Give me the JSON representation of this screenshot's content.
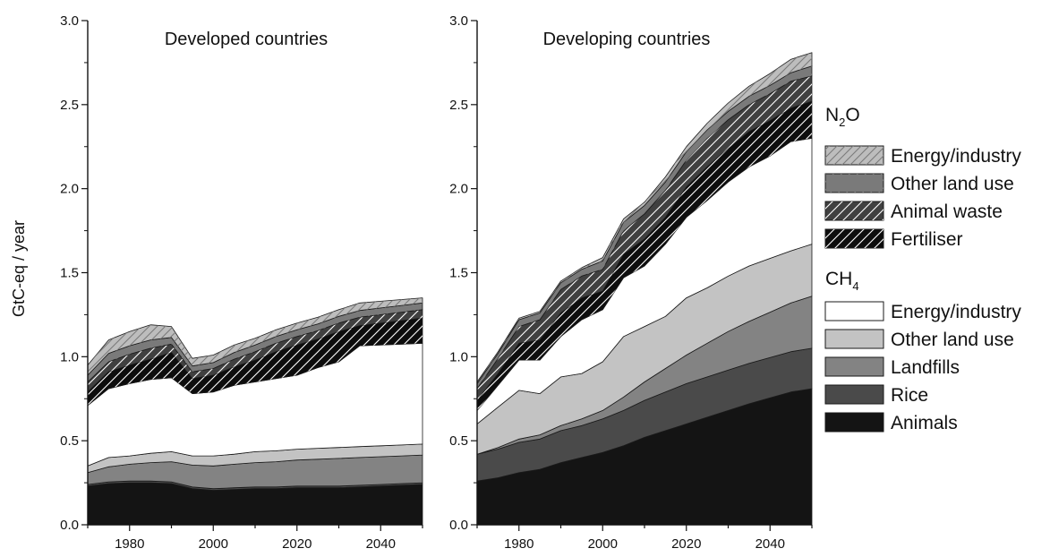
{
  "colors": {
    "animals": "#141414",
    "rice": "#4a4a4a",
    "landfills": "#838383",
    "ch4_other_land_use": "#c3c3c3",
    "ch4_energy_industry": "#ffffff",
    "fertiliser": "#0d0d0d",
    "animal_waste": "#404040",
    "n2o_other_land_use": "#7a7a7a",
    "n2o_energy_industry": "#bdbdbd"
  },
  "legend": {
    "n2o_heading": {
      "base": "N",
      "sub": "2",
      "tail": "O"
    },
    "ch4_heading": {
      "base": "CH",
      "sub": "4",
      "tail": ""
    },
    "n2o_items": [
      {
        "key": "n2o_energy_industry",
        "label": "Energy/industry",
        "color": "#bdbdbd",
        "hatched": true
      },
      {
        "key": "n2o_other_land_use",
        "label": "Other land use",
        "color": "#7a7a7a",
        "hatched": true
      },
      {
        "key": "animal_waste",
        "label": "Animal waste",
        "color": "#404040",
        "hatched": true
      },
      {
        "key": "fertiliser",
        "label": "Fertiliser",
        "color": "#0d0d0d",
        "hatched": true
      }
    ],
    "ch4_items": [
      {
        "key": "ch4_energy_industry",
        "label": "Energy/industry",
        "color": "#ffffff",
        "hatched": false
      },
      {
        "key": "ch4_other_land_use",
        "label": "Other land use",
        "color": "#c3c3c3",
        "hatched": false
      },
      {
        "key": "landfills",
        "label": "Landfills",
        "color": "#838383",
        "hatched": false
      },
      {
        "key": "rice",
        "label": "Rice",
        "color": "#4a4a4a",
        "hatched": false
      },
      {
        "key": "animals",
        "label": "Animals",
        "color": "#141414",
        "hatched": false
      }
    ]
  },
  "chart_data": [
    {
      "type": "area",
      "stacked": true,
      "title": "Developed countries",
      "xlabel": "",
      "ylabel": "GtC-eq / year",
      "xlim": [
        1970,
        2050
      ],
      "ylim": [
        0,
        3.0
      ],
      "xticks": [
        "1980",
        "2000",
        "2020",
        "2040"
      ],
      "yticks": [
        "0.0",
        "0.5",
        "1.0",
        "1.5",
        "2.0",
        "2.5",
        "3.0"
      ],
      "x": [
        1970,
        1975,
        1980,
        1985,
        1990,
        1995,
        2000,
        2005,
        2010,
        2015,
        2020,
        2025,
        2030,
        2035,
        2040,
        2045,
        2050
      ],
      "series": [
        {
          "key": "animals",
          "values": [
            0.23,
            0.245,
            0.25,
            0.25,
            0.245,
            0.215,
            0.205,
            0.21,
            0.215,
            0.215,
            0.22,
            0.22,
            0.22,
            0.225,
            0.23,
            0.235,
            0.24
          ]
        },
        {
          "key": "rice",
          "values": [
            0.01,
            0.01,
            0.01,
            0.01,
            0.01,
            0.01,
            0.01,
            0.01,
            0.01,
            0.01,
            0.01,
            0.01,
            0.01,
            0.01,
            0.01,
            0.01,
            0.01
          ]
        },
        {
          "key": "landfills",
          "values": [
            0.07,
            0.09,
            0.1,
            0.11,
            0.12,
            0.13,
            0.135,
            0.14,
            0.145,
            0.15,
            0.155,
            0.16,
            0.165,
            0.165,
            0.165,
            0.165,
            0.165
          ]
        },
        {
          "key": "ch4_other_land_use",
          "values": [
            0.04,
            0.055,
            0.05,
            0.055,
            0.06,
            0.055,
            0.06,
            0.06,
            0.065,
            0.065,
            0.065,
            0.065,
            0.065,
            0.065,
            0.065,
            0.065,
            0.065
          ]
        },
        {
          "key": "ch4_energy_industry",
          "values": [
            0.36,
            0.41,
            0.43,
            0.44,
            0.44,
            0.37,
            0.38,
            0.41,
            0.415,
            0.43,
            0.44,
            0.48,
            0.51,
            0.6,
            0.6,
            0.6,
            0.6
          ]
        },
        {
          "key": "fertiliser",
          "values": [
            0.08,
            0.1,
            0.11,
            0.12,
            0.15,
            0.09,
            0.1,
            0.11,
            0.13,
            0.16,
            0.18,
            0.17,
            0.18,
            0.12,
            0.13,
            0.14,
            0.15
          ]
        },
        {
          "key": "animal_waste",
          "values": [
            0.06,
            0.06,
            0.065,
            0.065,
            0.05,
            0.04,
            0.04,
            0.045,
            0.05,
            0.05,
            0.05,
            0.05,
            0.05,
            0.05,
            0.05,
            0.05,
            0.05
          ]
        },
        {
          "key": "n2o_other_land_use",
          "values": [
            0.04,
            0.05,
            0.05,
            0.05,
            0.04,
            0.035,
            0.035,
            0.04,
            0.04,
            0.04,
            0.04,
            0.04,
            0.04,
            0.04,
            0.04,
            0.04,
            0.04
          ]
        },
        {
          "key": "n2o_energy_industry",
          "values": [
            0.06,
            0.08,
            0.085,
            0.09,
            0.065,
            0.045,
            0.045,
            0.045,
            0.04,
            0.04,
            0.04,
            0.04,
            0.04,
            0.045,
            0.04,
            0.035,
            0.03
          ]
        }
      ]
    },
    {
      "type": "area",
      "stacked": true,
      "title": "Developing countries",
      "xlabel": "",
      "ylabel": "",
      "xlim": [
        1970,
        2050
      ],
      "ylim": [
        0,
        3.0
      ],
      "xticks": [
        "1980",
        "2000",
        "2020",
        "2040"
      ],
      "yticks": [
        "0.0",
        "0.5",
        "1.0",
        "1.5",
        "2.0",
        "2.5",
        "3.0"
      ],
      "x": [
        1970,
        1975,
        1980,
        1985,
        1990,
        1995,
        2000,
        2005,
        2010,
        2015,
        2020,
        2025,
        2030,
        2035,
        2040,
        2045,
        2050
      ],
      "series": [
        {
          "key": "animals",
          "values": [
            0.26,
            0.28,
            0.31,
            0.33,
            0.37,
            0.4,
            0.43,
            0.47,
            0.52,
            0.56,
            0.6,
            0.64,
            0.68,
            0.72,
            0.755,
            0.79,
            0.81
          ]
        },
        {
          "key": "rice",
          "values": [
            0.16,
            0.17,
            0.18,
            0.18,
            0.19,
            0.19,
            0.2,
            0.21,
            0.22,
            0.23,
            0.24,
            0.24,
            0.24,
            0.24,
            0.24,
            0.24,
            0.24
          ]
        },
        {
          "key": "landfills",
          "values": [
            0.0,
            0.01,
            0.02,
            0.025,
            0.03,
            0.04,
            0.05,
            0.08,
            0.11,
            0.14,
            0.17,
            0.2,
            0.23,
            0.25,
            0.27,
            0.29,
            0.31
          ]
        },
        {
          "key": "ch4_other_land_use",
          "values": [
            0.18,
            0.24,
            0.29,
            0.245,
            0.29,
            0.27,
            0.29,
            0.36,
            0.33,
            0.31,
            0.34,
            0.33,
            0.33,
            0.33,
            0.32,
            0.31,
            0.31
          ]
        },
        {
          "key": "ch4_energy_industry",
          "values": [
            0.08,
            0.13,
            0.18,
            0.2,
            0.24,
            0.32,
            0.31,
            0.35,
            0.36,
            0.43,
            0.48,
            0.52,
            0.56,
            0.59,
            0.61,
            0.65,
            0.63
          ]
        },
        {
          "key": "fertiliser",
          "values": [
            0.06,
            0.07,
            0.1,
            0.12,
            0.14,
            0.13,
            0.11,
            0.14,
            0.16,
            0.16,
            0.18,
            0.2,
            0.2,
            0.21,
            0.21,
            0.2,
            0.22
          ]
        },
        {
          "key": "animal_waste",
          "values": [
            0.07,
            0.09,
            0.1,
            0.12,
            0.14,
            0.13,
            0.13,
            0.14,
            0.15,
            0.16,
            0.16,
            0.17,
            0.17,
            0.16,
            0.16,
            0.16,
            0.15
          ]
        },
        {
          "key": "n2o_other_land_use",
          "values": [
            0.03,
            0.03,
            0.04,
            0.04,
            0.04,
            0.04,
            0.05,
            0.05,
            0.05,
            0.05,
            0.05,
            0.05,
            0.05,
            0.05,
            0.05,
            0.05,
            0.06
          ]
        },
        {
          "key": "n2o_energy_industry",
          "values": [
            0.01,
            0.01,
            0.01,
            0.01,
            0.01,
            0.01,
            0.02,
            0.02,
            0.02,
            0.03,
            0.03,
            0.04,
            0.05,
            0.06,
            0.07,
            0.08,
            0.08
          ]
        }
      ]
    }
  ]
}
